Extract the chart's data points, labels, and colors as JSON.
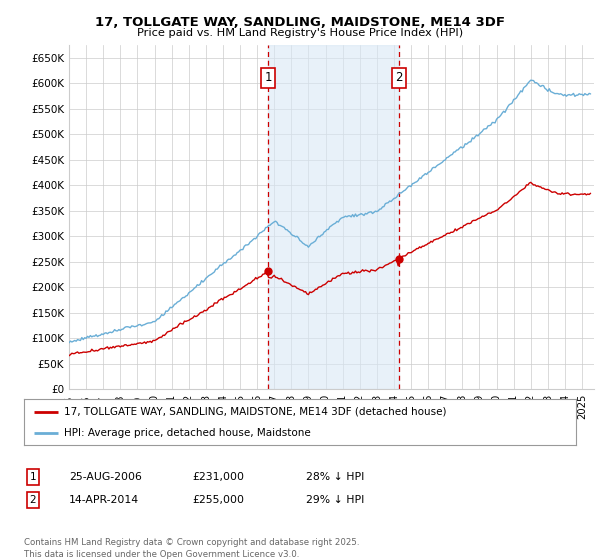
{
  "title": "17, TOLLGATE WAY, SANDLING, MAIDSTONE, ME14 3DF",
  "subtitle": "Price paid vs. HM Land Registry's House Price Index (HPI)",
  "ylim": [
    0,
    675000
  ],
  "yticks": [
    0,
    50000,
    100000,
    150000,
    200000,
    250000,
    300000,
    350000,
    400000,
    450000,
    500000,
    550000,
    600000,
    650000
  ],
  "ytick_labels": [
    "£0",
    "£50K",
    "£100K",
    "£150K",
    "£200K",
    "£250K",
    "£300K",
    "£350K",
    "£400K",
    "£450K",
    "£500K",
    "£550K",
    "£600K",
    "£650K"
  ],
  "hpi_color": "#6aaed6",
  "price_color": "#cc0000",
  "sale1_date": 2006.648,
  "sale1_price": 231000,
  "sale2_date": 2014.284,
  "sale2_price": 255000,
  "legend_entry1": "17, TOLLGATE WAY, SANDLING, MAIDSTONE, ME14 3DF (detached house)",
  "legend_entry2": "HPI: Average price, detached house, Maidstone",
  "table_row1": [
    "1",
    "25-AUG-2006",
    "£231,000",
    "28% ↓ HPI"
  ],
  "table_row2": [
    "2",
    "14-APR-2014",
    "£255,000",
    "29% ↓ HPI"
  ],
  "footnote": "Contains HM Land Registry data © Crown copyright and database right 2025.\nThis data is licensed under the Open Government Licence v3.0.",
  "background_color": "#ffffff",
  "grid_color": "#cccccc",
  "shade_color": "#d9e8f5"
}
